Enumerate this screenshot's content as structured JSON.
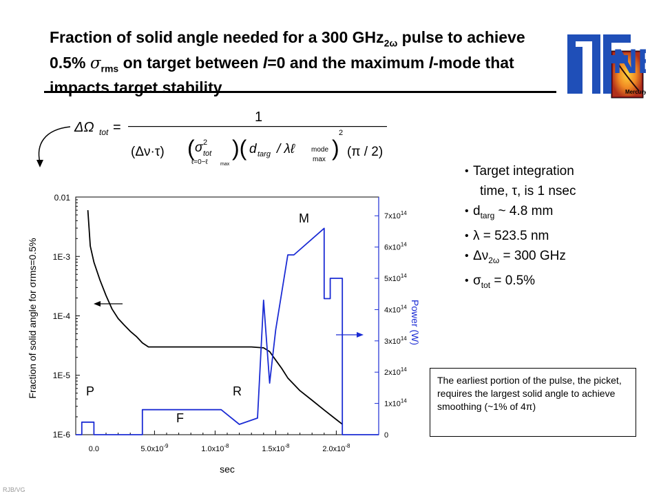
{
  "slide": {
    "title_part1": "Fraction of solid angle needed for a 300 GHz",
    "title_sub": "2ω",
    "title_part2": " pulse to achieve 0.5% ",
    "title_sigma": "σ",
    "title_sigma_sub": "rms",
    "title_part3": " on target between ",
    "title_l1": "l",
    "title_part4": "=0 and the maximum ",
    "title_l2": "l",
    "title_part5": "-mode that impacts target stability",
    "footer": "RJB/VG"
  },
  "logo": {
    "letters": "NE",
    "badge": "Mercury",
    "colors": {
      "blue": "#1f4fb8",
      "red": "#c8102e",
      "orange": "#f08a24"
    }
  },
  "formula": {
    "lhs": "ΔΩ",
    "lhs_sub": "tot",
    "equals": "=",
    "numerator": "1",
    "term1": "(Δν·τ)",
    "sigma": "σ",
    "sigma_sup": "2",
    "sigma_sub": "tot",
    "sigma_range": "ℓ=0−ℓ",
    "sigma_range_sub": "max",
    "d": "d",
    "d_sub": "targ",
    "over_lambda": "/ λℓ",
    "mode_top": "mode",
    "mode_bottom": "max",
    "bracket_sup": "2",
    "term_pi": "(π / 2)"
  },
  "bullets": [
    {
      "lead": "Target integration",
      "cont": "time, τ, is 1 nsec"
    },
    {
      "pre": "d",
      "sub": "targ",
      "post": " ~ 4.8 mm"
    },
    {
      "pre": "λ = 523.5 nm"
    },
    {
      "pre": "Δν",
      "sub": "2ω",
      "post": " = 300 GHz"
    },
    {
      "pre": "σ",
      "sub": "tot",
      "post": " = 0.5%"
    }
  ],
  "note": {
    "text": "The earliest portion of the pulse, the picket, requires the largest solid angle to achieve smoothing (~1% of 4π)"
  },
  "chart_data": {
    "type": "line",
    "title": "",
    "xlabel": "sec",
    "ylabel_left": "Fraction of solid angle for σrms=0.5%",
    "ylabel_right": "Power (W)",
    "xlim": [
      -1.5e-09,
      2.35e-08
    ],
    "x_ticks": [
      "0.0",
      "5.0x10-9",
      "1.0x10-8",
      "1.5x10-8",
      "2.0x10-8"
    ],
    "x_tick_values": [
      0,
      5e-09,
      1e-08,
      1.5e-08,
      2e-08
    ],
    "y_left": {
      "scale": "log",
      "range": [
        1e-06,
        0.01
      ],
      "ticks": [
        "0.01",
        "1E-3",
        "1E-4",
        "1E-5",
        "1E-6"
      ]
    },
    "y_right": {
      "scale": "linear",
      "range": [
        0,
        760000000000000.0
      ],
      "ticks": [
        "0",
        "1x1014",
        "2x1014",
        "3x1014",
        "4x1014",
        "5x1014",
        "6x1014",
        "7x1014"
      ]
    },
    "series": [
      {
        "axis": "left",
        "color": "#000000",
        "x": [
          -5e-10,
          -3e-10,
          0,
          5e-10,
          1e-09,
          1.5e-09,
          2e-09,
          2.5e-09,
          3e-09,
          3.5e-09,
          4e-09,
          4.5e-09,
          6e-09,
          8e-09,
          1.2e-08,
          1.3e-08,
          1.4e-08,
          1.45e-08,
          1.5e-08,
          1.55e-08,
          1.6e-08,
          1.7e-08,
          1.8e-08,
          1.9e-08,
          2e-08,
          2.05e-08
        ],
        "y": [
          0.006,
          0.0015,
          0.0008,
          0.0004,
          0.00022,
          0.00013,
          9e-05,
          7e-05,
          5.5e-05,
          4.5e-05,
          3.5e-05,
          3e-05,
          3e-05,
          3e-05,
          3e-05,
          3e-05,
          2.9e-05,
          2.5e-05,
          1.8e-05,
          1.3e-05,
          9e-06,
          5.5e-06,
          3.8e-06,
          2.6e-06,
          1.8e-06,
          1.5e-06
        ]
      },
      {
        "axis": "right",
        "color": "#1a2bd4",
        "x": [
          -1.5e-09,
          -1e-09,
          -1e-09,
          0,
          0,
          4e-09,
          4e-09,
          1.05e-08,
          1.2e-08,
          1.35e-08,
          1.4e-08,
          1.45e-08,
          1.5e-08,
          1.6e-08,
          1.65e-08,
          1.9e-08,
          1.9e-08,
          1.95e-08,
          1.95e-08,
          2.05e-08,
          2.05e-08,
          2.35e-08
        ],
        "y": [
          0,
          0,
          40000000000000.0,
          40000000000000.0,
          0,
          0,
          80000000000000.0,
          80000000000000.0,
          33000000000000.0,
          53000000000000.0,
          430000000000000.0,
          165000000000000.0,
          335000000000000.0,
          575000000000000.0,
          575000000000000.0,
          660000000000000.0,
          435000000000000.0,
          435000000000000.0,
          500000000000000.0,
          500000000000000.0,
          0,
          0
        ]
      }
    ],
    "annotations": [
      "P",
      "F",
      "R",
      "M"
    ]
  }
}
